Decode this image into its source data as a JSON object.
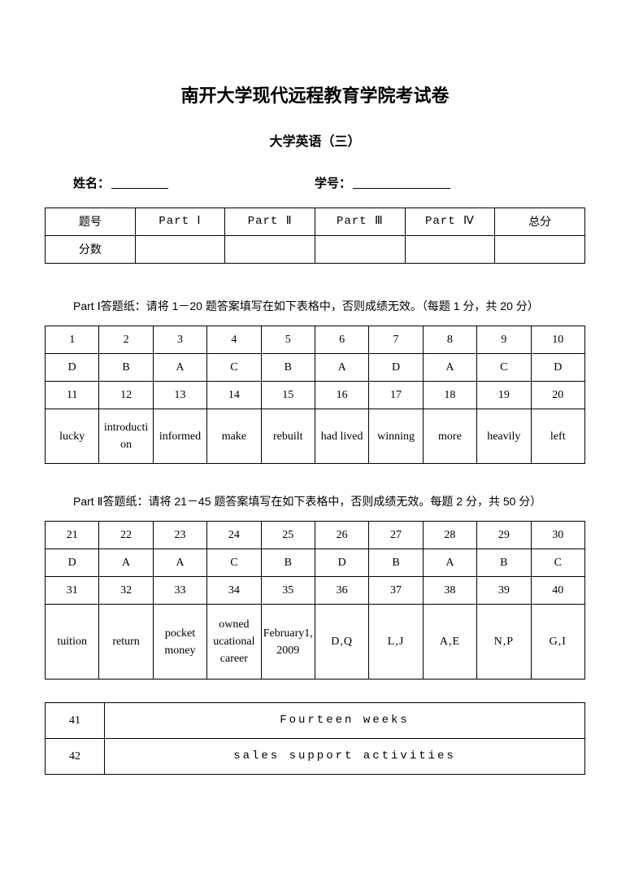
{
  "title": "南开大学现代远程教育学院考试卷",
  "subtitle": "大学英语（三）",
  "name_label": "姓名：",
  "id_label": "学号：",
  "header_table": {
    "cells": [
      "题号",
      "Part Ⅰ",
      "Part Ⅱ",
      "Part Ⅲ",
      "Part Ⅳ",
      "总分"
    ],
    "score_label": "分数"
  },
  "part1": {
    "title": "Part Ⅰ答题纸：请将 1－20 题答案填写在如下表格中，否则成绩无效。（每题 1 分，共 20 分）",
    "row1_nums": [
      "1",
      "2",
      "3",
      "4",
      "5",
      "6",
      "7",
      "8",
      "9",
      "10"
    ],
    "row1_ans": [
      "D",
      "B",
      "A",
      "C",
      "B",
      "A",
      "D",
      "A",
      "C",
      "D"
    ],
    "row2_nums": [
      "11",
      "12",
      "13",
      "14",
      "15",
      "16",
      "17",
      "18",
      "19",
      "20"
    ],
    "row2_ans": [
      "lucky",
      "introduction",
      "informed",
      "make",
      "rebuilt",
      "had lived",
      "winning",
      "more",
      "heavily",
      "left"
    ]
  },
  "part2": {
    "title": "Part Ⅱ答题纸：请将 21－45 题答案填写在如下表格中，否则成绩无效。每题 2 分，共 50 分）",
    "row1_nums": [
      "21",
      "22",
      "23",
      "24",
      "25",
      "26",
      "27",
      "28",
      "29",
      "30"
    ],
    "row1_ans": [
      "D",
      "A",
      "A",
      "C",
      "B",
      "D",
      "B",
      "A",
      "B",
      "C"
    ],
    "row2_nums": [
      "31",
      "32",
      "33",
      "34",
      "35",
      "36",
      "37",
      "38",
      "39",
      "40"
    ],
    "row2_ans": [
      "tuition",
      "return",
      "pocket money",
      "owned ucational career",
      "February1,2009",
      "D,Q",
      "L,J",
      "A,E",
      "N,P",
      "G,I"
    ]
  },
  "wide": {
    "r1_num": "41",
    "r1_ans": "Fourteen  weeks",
    "r2_num": "42",
    "r2_ans": "sales  support  activities"
  }
}
